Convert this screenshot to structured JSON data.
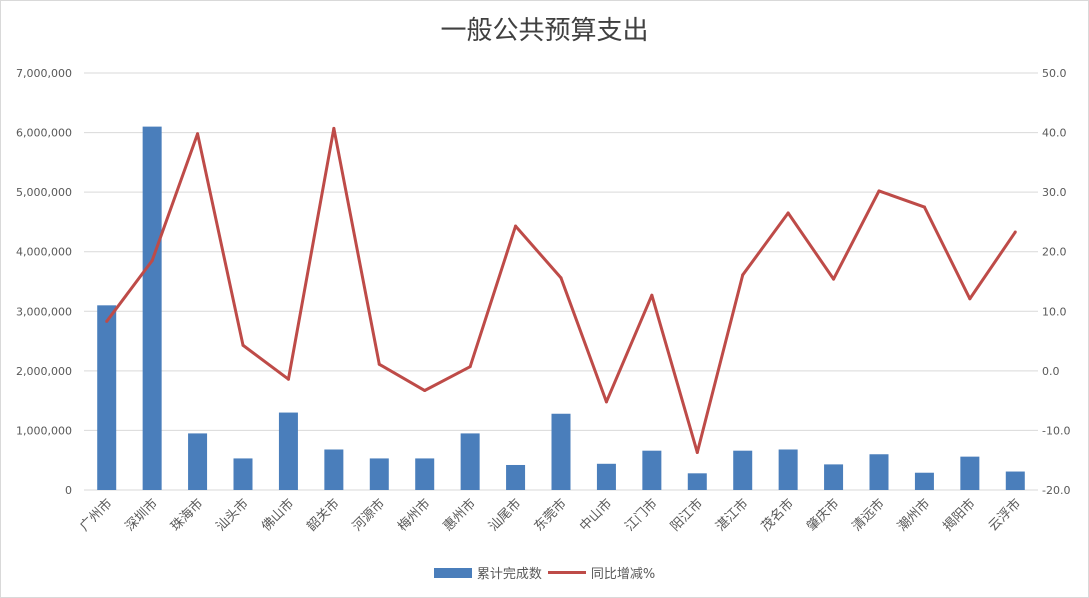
{
  "chart_data": {
    "type": "bar",
    "title": "一般公共预算支出",
    "categories": [
      "广州市",
      "深圳市",
      "珠海市",
      "汕头市",
      "佛山市",
      "韶关市",
      "河源市",
      "梅州市",
      "惠州市",
      "汕尾市",
      "东莞市",
      "中山市",
      "江门市",
      "阳江市",
      "湛江市",
      "茂名市",
      "肇庆市",
      "清远市",
      "潮州市",
      "揭阳市",
      "云浮市"
    ],
    "series": [
      {
        "name": "累计完成数",
        "type": "bar",
        "axis": "left",
        "values": [
          3100000,
          6100000,
          950000,
          530000,
          1300000,
          680000,
          530000,
          530000,
          950000,
          420000,
          1280000,
          440000,
          660000,
          280000,
          660000,
          680000,
          430000,
          600000,
          290000,
          560000,
          310000
        ]
      },
      {
        "name": "同比增减%",
        "type": "line",
        "axis": "right",
        "values": [
          8.3,
          18.5,
          39.8,
          4.3,
          -1.4,
          40.7,
          1.1,
          -3.3,
          0.7,
          24.3,
          15.6,
          -5.2,
          12.7,
          -13.7,
          16.1,
          26.5,
          15.4,
          30.2,
          27.5,
          12.1,
          23.3
        ]
      }
    ],
    "left_axis": {
      "min": 0,
      "max": 7000000,
      "ticks": [
        "0",
        "1,000,000",
        "2,000,000",
        "3,000,000",
        "4,000,000",
        "5,000,000",
        "6,000,000",
        "7,000,000"
      ]
    },
    "right_axis": {
      "min": -20,
      "max": 50,
      "ticks": [
        "-20.0",
        "-10.0",
        "0.0",
        "10.0",
        "20.0",
        "30.0",
        "40.0",
        "50.0"
      ]
    },
    "grid": true,
    "legend_position": "bottom"
  },
  "colors": {
    "bar": "#4a7ebb",
    "line": "#be4b48",
    "grid": "#d9d9d9"
  }
}
